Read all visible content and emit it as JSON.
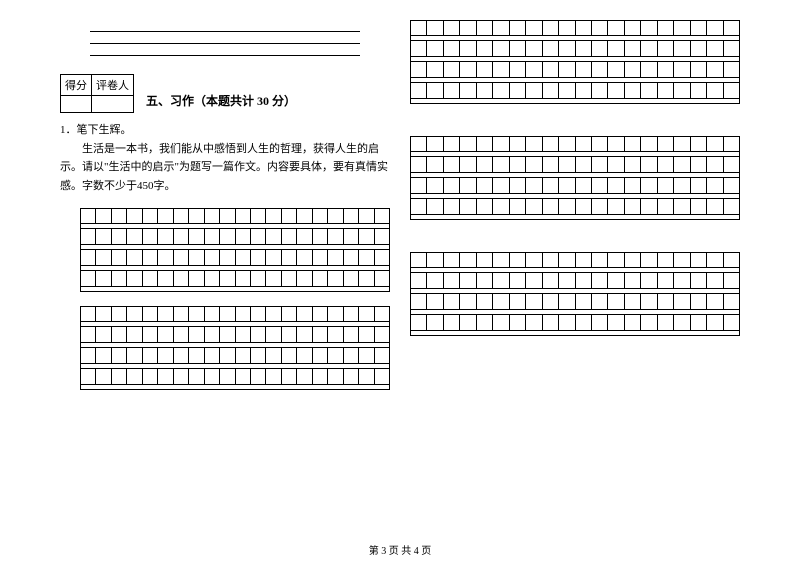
{
  "blank_lines_count": 3,
  "score_header": {
    "col1": "得分",
    "col2": "评卷人"
  },
  "section_title": "五、习作（本题共计 30 分）",
  "question_number": "1．笔下生辉。",
  "question_body": "生活是一本书，我们能从中感悟到人生的哲理，获得人生的启示。请以\"生活中的启示\"为题写一篇作文。内容要具体，要有真情实感。字数不少于450字。",
  "grid": {
    "cols": 20,
    "group_rows": 4,
    "left_groups": 2,
    "right_groups": 3
  },
  "footer": "第 3 页  共 4 页",
  "colors": {
    "text": "#000000",
    "border": "#000000",
    "background": "#ffffff"
  }
}
